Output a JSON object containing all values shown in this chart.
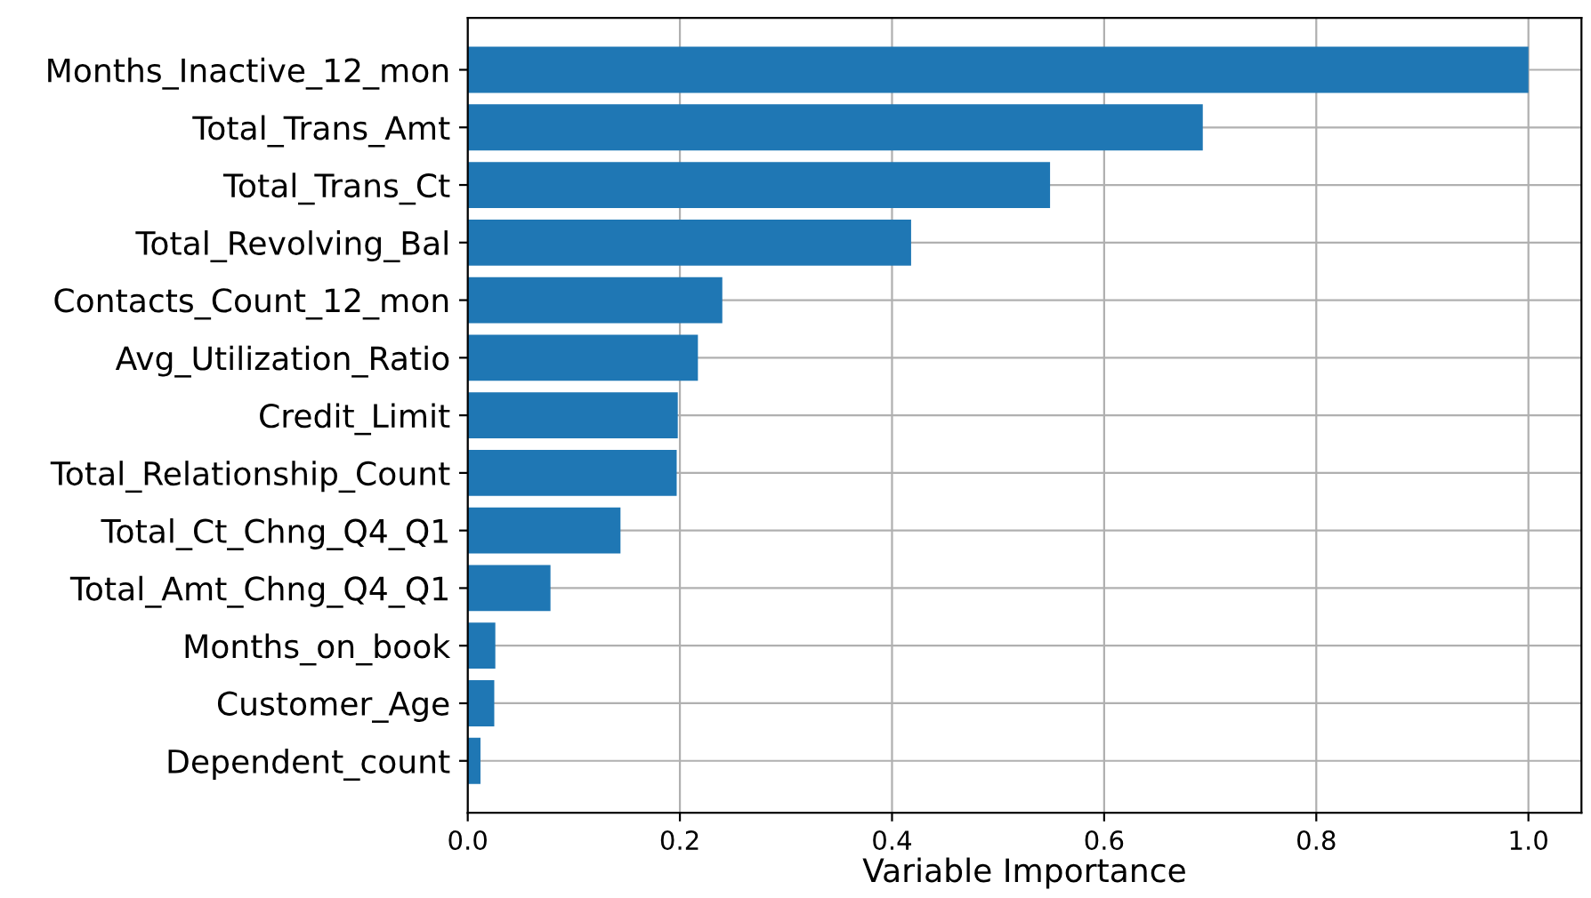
{
  "chart_data": {
    "type": "bar",
    "orientation": "horizontal",
    "xlabel": "Variable Importance",
    "categories": [
      "Months_Inactive_12_mon",
      "Total_Trans_Amt",
      "Total_Trans_Ct",
      "Total_Revolving_Bal",
      "Contacts_Count_12_mon",
      "Avg_Utilization_Ratio",
      "Credit_Limit",
      "Total_Relationship_Count",
      "Total_Ct_Chng_Q4_Q1",
      "Total_Amt_Chng_Q4_Q1",
      "Months_on_book",
      "Customer_Age",
      "Dependent_count"
    ],
    "values": [
      1.0,
      0.693,
      0.549,
      0.418,
      0.24,
      0.217,
      0.198,
      0.197,
      0.144,
      0.078,
      0.026,
      0.025,
      0.012
    ],
    "color": "#1f77b4",
    "xlim": [
      0,
      1.05
    ],
    "xticks": [
      {
        "value": 0,
        "label": "0.0"
      },
      0.2,
      0.4,
      0.6,
      0.8,
      {
        "value": 1,
        "label": "1.0"
      }
    ],
    "grid": true
  }
}
